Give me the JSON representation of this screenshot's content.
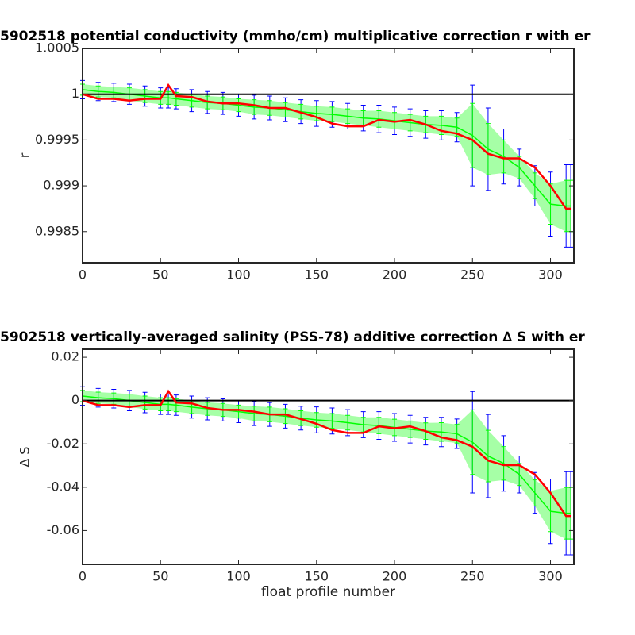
{
  "chart_data": [
    {
      "type": "line",
      "title": "5902518 potential conductivity (mmho/cm) multiplicative correction r with er",
      "ylabel": "r",
      "x": [
        0,
        10,
        20,
        30,
        40,
        50,
        55,
        60,
        70,
        80,
        90,
        100,
        110,
        120,
        130,
        140,
        150,
        160,
        170,
        180,
        190,
        200,
        210,
        220,
        230,
        240,
        250,
        260,
        270,
        280,
        290,
        300,
        310,
        313
      ],
      "xlim": [
        0,
        315
      ],
      "xticks": [
        0,
        50,
        100,
        150,
        200,
        250,
        300
      ],
      "ylim": [
        0.99816,
        1.0005
      ],
      "yticks": [
        0.9985,
        0.999,
        0.9995,
        1,
        1.0005
      ],
      "reference_line": 1,
      "series": [
        {
          "color": "#0000ff",
          "values": [
            1.00005,
            1.00003,
            1.00002,
            1,
            0.99998,
            0.99996,
            0.99996,
            0.99995,
            0.99993,
            0.99991,
            0.9999,
            0.99988,
            0.99986,
            0.99985,
            0.99983,
            0.99981,
            0.99979,
            0.99978,
            0.99976,
            0.99974,
            0.99973,
            0.99971,
            0.99969,
            0.99967,
            0.99966,
            0.99964,
            0.99955,
            0.9994,
            0.99932,
            0.9992,
            0.999,
            0.9988,
            0.99878,
            0.99878
          ],
          "errors": [
            0.0001,
            0.0001,
            0.0001,
            0.00011,
            0.00011,
            0.00011,
            0.00011,
            0.00011,
            0.00012,
            0.00012,
            0.00012,
            0.00012,
            0.00013,
            0.00013,
            0.00013,
            0.00013,
            0.00014,
            0.00014,
            0.00014,
            0.00014,
            0.00015,
            0.00015,
            0.00015,
            0.00015,
            0.00016,
            0.00016,
            0.00055,
            0.00045,
            0.0003,
            0.0002,
            0.00022,
            0.00035,
            0.00045,
            0.00045
          ]
        },
        {
          "color": "#00ff00",
          "values": [
            1.00005,
            1.00003,
            1.00002,
            1,
            0.99998,
            0.99996,
            0.99996,
            0.99995,
            0.99993,
            0.99991,
            0.9999,
            0.99988,
            0.99986,
            0.99985,
            0.99983,
            0.99981,
            0.99979,
            0.99978,
            0.99976,
            0.99974,
            0.99973,
            0.99971,
            0.99969,
            0.99967,
            0.99966,
            0.99964,
            0.99955,
            0.9994,
            0.99932,
            0.9992,
            0.999,
            0.9988,
            0.99878,
            0.99878
          ],
          "errors": [
            6e-05,
            6e-05,
            6e-05,
            7e-05,
            7e-05,
            7e-05,
            7e-05,
            7e-05,
            7e-05,
            7e-05,
            7e-05,
            7e-05,
            8e-05,
            8e-05,
            8e-05,
            8e-05,
            8e-05,
            8e-05,
            8e-05,
            8e-05,
            9e-05,
            9e-05,
            9e-05,
            9e-05,
            0.0001,
            0.0001,
            0.00035,
            0.00028,
            0.00018,
            0.00012,
            0.00014,
            0.00022,
            0.00028,
            0.00028
          ]
        },
        {
          "color": "#ff0000",
          "values": [
            1,
            0.99995,
            0.99995,
            0.99993,
            0.99995,
            0.99995,
            1.0001,
            0.99998,
            0.99997,
            0.99992,
            0.9999,
            0.9999,
            0.99988,
            0.99985,
            0.99985,
            0.9998,
            0.99975,
            0.99968,
            0.99965,
            0.99965,
            0.99972,
            0.9997,
            0.99972,
            0.99967,
            0.9996,
            0.99957,
            0.9995,
            0.99935,
            0.9993,
            0.9993,
            0.9992,
            0.999,
            0.99875,
            0.99875
          ]
        }
      ]
    },
    {
      "type": "line",
      "title": "5902518 vertically-averaged salinity (PSS-78) additive correction ∆ S with er",
      "ylabel": "∆ S",
      "xlabel": "float profile number",
      "x": [
        0,
        10,
        20,
        30,
        40,
        50,
        55,
        60,
        70,
        80,
        90,
        100,
        110,
        120,
        130,
        140,
        150,
        160,
        170,
        180,
        190,
        200,
        210,
        220,
        230,
        240,
        250,
        260,
        270,
        280,
        290,
        300,
        310,
        313
      ],
      "xlim": [
        0,
        315
      ],
      "xticks": [
        0,
        50,
        100,
        150,
        200,
        250,
        300
      ],
      "ylim": [
        -0.0756,
        0.0237
      ],
      "yticks": [
        -0.06,
        -0.04,
        -0.02,
        0,
        0.02
      ],
      "reference_line": 0,
      "series": [
        {
          "color": "#0000ff",
          "values": [
            0.0021,
            0.0013,
            0.0009,
            0,
            -0.0009,
            -0.0017,
            -0.0017,
            -0.0021,
            -0.003,
            -0.0038,
            -0.0043,
            -0.0051,
            -0.006,
            -0.0064,
            -0.0072,
            -0.0081,
            -0.0089,
            -0.0094,
            -0.0102,
            -0.0111,
            -0.0115,
            -0.0124,
            -0.0132,
            -0.0141,
            -0.0145,
            -0.0153,
            -0.0192,
            -0.0256,
            -0.029,
            -0.0341,
            -0.0426,
            -0.0511,
            -0.052,
            -0.052
          ],
          "errors": [
            0.0043,
            0.0043,
            0.0043,
            0.0047,
            0.0047,
            0.0047,
            0.0047,
            0.0047,
            0.0051,
            0.0051,
            0.0051,
            0.0051,
            0.0055,
            0.0055,
            0.0055,
            0.0055,
            0.006,
            0.006,
            0.006,
            0.006,
            0.0064,
            0.0064,
            0.0064,
            0.0064,
            0.0068,
            0.0068,
            0.0234,
            0.0192,
            0.0128,
            0.0085,
            0.0094,
            0.0149,
            0.0192,
            0.0192
          ]
        },
        {
          "color": "#00ff00",
          "values": [
            0.0021,
            0.0013,
            0.0009,
            0,
            -0.0009,
            -0.0017,
            -0.0017,
            -0.0021,
            -0.003,
            -0.0038,
            -0.0043,
            -0.0051,
            -0.006,
            -0.0064,
            -0.0072,
            -0.0081,
            -0.0089,
            -0.0094,
            -0.0102,
            -0.0111,
            -0.0115,
            -0.0124,
            -0.0132,
            -0.0141,
            -0.0145,
            -0.0153,
            -0.0192,
            -0.0256,
            -0.029,
            -0.0341,
            -0.0426,
            -0.0511,
            -0.052,
            -0.052
          ],
          "errors": [
            0.0026,
            0.0026,
            0.0026,
            0.003,
            0.003,
            0.003,
            0.003,
            0.003,
            0.003,
            0.003,
            0.003,
            0.003,
            0.0034,
            0.0034,
            0.0034,
            0.0034,
            0.0034,
            0.0034,
            0.0034,
            0.0034,
            0.0038,
            0.0038,
            0.0038,
            0.0038,
            0.0043,
            0.0043,
            0.0149,
            0.0119,
            0.0077,
            0.0051,
            0.006,
            0.0094,
            0.0119,
            0.0119
          ]
        },
        {
          "color": "#ff0000",
          "values": [
            0,
            -0.0021,
            -0.0021,
            -0.003,
            -0.0021,
            -0.0021,
            0.0043,
            -0.0009,
            -0.0013,
            -0.0034,
            -0.0043,
            -0.0043,
            -0.0051,
            -0.0064,
            -0.0064,
            -0.0085,
            -0.0107,
            -0.0136,
            -0.0149,
            -0.0149,
            -0.0119,
            -0.0128,
            -0.0119,
            -0.0141,
            -0.017,
            -0.0183,
            -0.0213,
            -0.0277,
            -0.0298,
            -0.0298,
            -0.0341,
            -0.0426,
            -0.0533,
            -0.0533
          ]
        }
      ]
    }
  ]
}
